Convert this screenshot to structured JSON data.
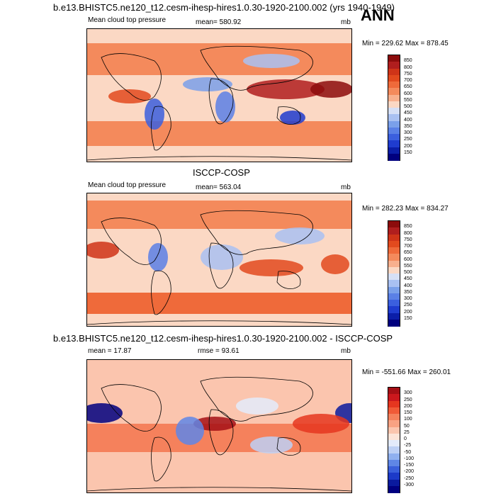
{
  "panels": [
    {
      "case_title": "b.e13.BHISTC5.ne120_t12.cesm-ihesp-hires1.0.30-1920-2100.002 (yrs 1940-1949)",
      "season": "ANN",
      "left_label": "Mean cloud top pressure",
      "stat_label": "mean= 580.92",
      "unit_label": "mb",
      "minmax": "Min = 229.62 Max = 878.45",
      "colorbar_labels": [
        "850",
        "800",
        "750",
        "700",
        "650",
        "600",
        "550",
        "500",
        "450",
        "400",
        "350",
        "300",
        "250",
        "200",
        "150"
      ],
      "colorbar_colors": [
        "#8c0c0c",
        "#b01e1e",
        "#cf3418",
        "#e24a1e",
        "#ef6a3a",
        "#f48a5c",
        "#f8b08e",
        "#fbd8c4",
        "#d6e0f6",
        "#a9c1f2",
        "#7aa0ea",
        "#5a80e6",
        "#3b5fde",
        "#1f3ccf",
        "#0b1ea8",
        "#00007f"
      ]
    },
    {
      "case_title": "ISCCP-COSP",
      "left_label": "Mean cloud top pressure",
      "stat_label": "mean= 563.04",
      "unit_label": "mb",
      "minmax": "Min = 282.23 Max = 834.27",
      "colorbar_labels": [
        "850",
        "800",
        "750",
        "700",
        "650",
        "600",
        "550",
        "500",
        "450",
        "400",
        "350",
        "300",
        "250",
        "200",
        "150"
      ],
      "colorbar_colors": [
        "#8c0c0c",
        "#b01e1e",
        "#cf3418",
        "#e24a1e",
        "#ef6a3a",
        "#f48a5c",
        "#f8b08e",
        "#fbd8c4",
        "#d6e0f6",
        "#a9c1f2",
        "#7aa0ea",
        "#5a80e6",
        "#3b5fde",
        "#1f3ccf",
        "#0b1ea8",
        "#00007f"
      ]
    },
    {
      "case_title": "b.e13.BHISTC5.ne120_t12.cesm-ihesp-hires1.0.30-1920-2100.002 - ISCCP-COSP",
      "left_label": "mean =  17.87",
      "stat_label": "rmse =  93.61",
      "unit_label": "mb",
      "minmax": "Min = -551.66 Max = 260.01",
      "colorbar_labels": [
        "300",
        "250",
        "200",
        "150",
        "100",
        "50",
        "25",
        "0",
        "-25",
        "-50",
        "-100",
        "-150",
        "-200",
        "-250",
        "-300"
      ],
      "colorbar_colors": [
        "#a50f15",
        "#cb181d",
        "#e5361f",
        "#f05a37",
        "#f5815c",
        "#f8a283",
        "#fbc5ae",
        "#fde4d8",
        "#e3ebfb",
        "#bdd0f5",
        "#8fb0ef",
        "#5f86e6",
        "#3a5fdb",
        "#1c3ac8",
        "#0a1a9e",
        "#000080"
      ]
    }
  ],
  "chart_data": [
    {
      "type": "heatmap",
      "title": "b.e13.BHISTC5.ne120_t12.cesm-ihesp-hires1.0.30-1920-2100.002 (yrs 1940-1949)",
      "variable": "Mean cloud top pressure",
      "units": "mb",
      "mean": 580.92,
      "min": 229.62,
      "max": 878.45,
      "contour_levels": [
        150,
        200,
        250,
        300,
        350,
        400,
        450,
        500,
        550,
        600,
        650,
        700,
        750,
        800,
        850
      ]
    },
    {
      "type": "heatmap",
      "title": "ISCCP-COSP",
      "variable": "Mean cloud top pressure",
      "units": "mb",
      "mean": 563.04,
      "min": 282.23,
      "max": 834.27,
      "contour_levels": [
        150,
        200,
        250,
        300,
        350,
        400,
        450,
        500,
        550,
        600,
        650,
        700,
        750,
        800,
        850
      ]
    },
    {
      "type": "heatmap",
      "title": "b.e13.BHISTC5.ne120_t12.cesm-ihesp-hires1.0.30-1920-2100.002 - ISCCP-COSP",
      "units": "mb",
      "mean": 17.87,
      "rmse": 93.61,
      "min": -551.66,
      "max": 260.01,
      "contour_levels": [
        -300,
        -250,
        -200,
        -150,
        -100,
        -50,
        -25,
        0,
        25,
        50,
        100,
        150,
        200,
        250,
        300
      ]
    }
  ]
}
